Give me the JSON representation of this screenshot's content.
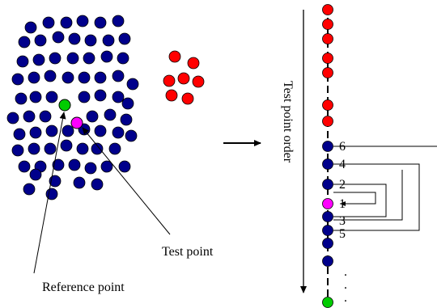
{
  "labels": {
    "test_point": "Test point",
    "reference_point": "Reference point",
    "axis_label": "Test point order",
    "ellipsis": "."
  },
  "order_numbers": [
    "6",
    "4",
    "2",
    "1",
    "3",
    "5"
  ],
  "colors": {
    "blue": "#00008b",
    "red": "#ff0000",
    "green": "#00cc00",
    "magenta": "#ff00ff",
    "stroke": "#000000"
  }
}
